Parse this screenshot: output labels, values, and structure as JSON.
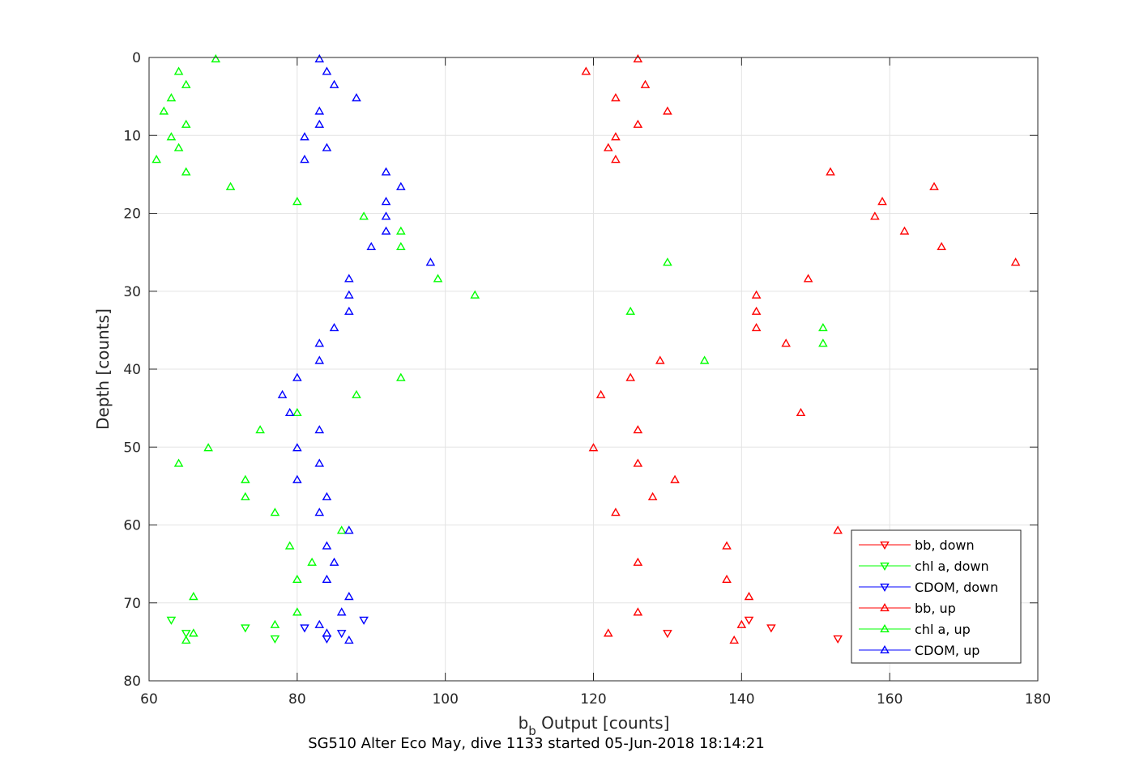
{
  "chart_data": {
    "type": "scatter",
    "xlabel": "b",
    "xlabel_subscript": "b",
    "xlabel_rest": " Output [counts]",
    "ylabel": "Depth [counts]",
    "caption": "SG510 Alter Eco May, dive 1133 started 05-Jun-2018 18:14:21",
    "xlim": [
      60,
      180
    ],
    "ylim": [
      0,
      80
    ],
    "y_reversed": true,
    "xticks": [
      "60",
      "80",
      "100",
      "120",
      "140",
      "160",
      "180"
    ],
    "yticks": [
      "0",
      "10",
      "20",
      "30",
      "40",
      "50",
      "60",
      "70",
      "80"
    ],
    "grid": true,
    "legend_position": "bottom-right",
    "series": [
      {
        "name": "bb, down",
        "color": "#ff0000",
        "marker": "triangle-down",
        "points": [
          [
            141,
            72.2
          ],
          [
            144,
            73.2
          ],
          [
            130,
            73.9
          ],
          [
            153,
            74.6
          ]
        ]
      },
      {
        "name": "chl a, down",
        "color": "#00ff00",
        "marker": "triangle-down",
        "points": [
          [
            63,
            72.2
          ],
          [
            73,
            73.2
          ],
          [
            65,
            73.9
          ],
          [
            77,
            74.6
          ]
        ]
      },
      {
        "name": "CDOM, down",
        "color": "#0000ff",
        "marker": "triangle-down",
        "points": [
          [
            89,
            72.2
          ],
          [
            81,
            73.2
          ],
          [
            86,
            73.9
          ],
          [
            84,
            74.6
          ]
        ]
      },
      {
        "name": "bb, up",
        "color": "#ff0000",
        "marker": "triangle-up",
        "points": [
          [
            126,
            0.2
          ],
          [
            119,
            1.8
          ],
          [
            127,
            3.5
          ],
          [
            123,
            5.2
          ],
          [
            130,
            6.9
          ],
          [
            126,
            8.6
          ],
          [
            123,
            10.2
          ],
          [
            122,
            11.6
          ],
          [
            123,
            13.1
          ],
          [
            152,
            14.7
          ],
          [
            166,
            16.6
          ],
          [
            159,
            18.5
          ],
          [
            158,
            20.4
          ],
          [
            162,
            22.3
          ],
          [
            167,
            24.3
          ],
          [
            177,
            26.3
          ],
          [
            149,
            28.4
          ],
          [
            142,
            30.5
          ],
          [
            142,
            32.6
          ],
          [
            142,
            34.7
          ],
          [
            146,
            36.7
          ],
          [
            129,
            38.9
          ],
          [
            125,
            41.1
          ],
          [
            121,
            43.3
          ],
          [
            148,
            45.6
          ],
          [
            126,
            47.8
          ],
          [
            120,
            50.1
          ],
          [
            126,
            52.1
          ],
          [
            131,
            54.2
          ],
          [
            128,
            56.4
          ],
          [
            123,
            58.4
          ],
          [
            153,
            60.7
          ],
          [
            138,
            62.7
          ],
          [
            126,
            64.8
          ],
          [
            138,
            67
          ],
          [
            141,
            69.2
          ],
          [
            126,
            71.2
          ],
          [
            140,
            72.8
          ],
          [
            122,
            73.9
          ],
          [
            139,
            74.8
          ]
        ]
      },
      {
        "name": "chl a, up",
        "color": "#00ff00",
        "marker": "triangle-up",
        "points": [
          [
            69,
            0.2
          ],
          [
            64,
            1.8
          ],
          [
            65,
            3.5
          ],
          [
            63,
            5.2
          ],
          [
            62,
            6.9
          ],
          [
            65,
            8.6
          ],
          [
            63,
            10.2
          ],
          [
            64,
            11.6
          ],
          [
            61,
            13.1
          ],
          [
            65,
            14.7
          ],
          [
            71,
            16.6
          ],
          [
            80,
            18.5
          ],
          [
            89,
            20.4
          ],
          [
            94,
            22.3
          ],
          [
            94,
            24.3
          ],
          [
            130,
            26.3
          ],
          [
            99,
            28.4
          ],
          [
            104,
            30.5
          ],
          [
            125,
            32.6
          ],
          [
            151,
            34.7
          ],
          [
            151,
            36.7
          ],
          [
            135,
            38.9
          ],
          [
            94,
            41.1
          ],
          [
            88,
            43.3
          ],
          [
            80,
            45.6
          ],
          [
            75,
            47.8
          ],
          [
            68,
            50.1
          ],
          [
            64,
            52.1
          ],
          [
            73,
            54.2
          ],
          [
            73,
            56.4
          ],
          [
            77,
            58.4
          ],
          [
            86,
            60.7
          ],
          [
            79,
            62.7
          ],
          [
            82,
            64.8
          ],
          [
            80,
            67
          ],
          [
            66,
            69.2
          ],
          [
            80,
            71.2
          ],
          [
            77,
            72.8
          ],
          [
            66,
            73.9
          ],
          [
            65,
            74.8
          ]
        ]
      },
      {
        "name": "CDOM, up",
        "color": "#0000ff",
        "marker": "triangle-up",
        "points": [
          [
            83,
            0.2
          ],
          [
            84,
            1.8
          ],
          [
            85,
            3.5
          ],
          [
            88,
            5.2
          ],
          [
            83,
            6.9
          ],
          [
            83,
            8.6
          ],
          [
            81,
            10.2
          ],
          [
            84,
            11.6
          ],
          [
            81,
            13.1
          ],
          [
            92,
            14.7
          ],
          [
            94,
            16.6
          ],
          [
            92,
            18.5
          ],
          [
            92,
            20.4
          ],
          [
            92,
            22.3
          ],
          [
            90,
            24.3
          ],
          [
            98,
            26.3
          ],
          [
            87,
            28.4
          ],
          [
            87,
            30.5
          ],
          [
            87,
            32.6
          ],
          [
            85,
            34.7
          ],
          [
            83,
            36.7
          ],
          [
            83,
            38.9
          ],
          [
            80,
            41.1
          ],
          [
            78,
            43.3
          ],
          [
            79,
            45.6
          ],
          [
            83,
            47.8
          ],
          [
            80,
            50.1
          ],
          [
            83,
            52.1
          ],
          [
            80,
            54.2
          ],
          [
            84,
            56.4
          ],
          [
            83,
            58.4
          ],
          [
            87,
            60.7
          ],
          [
            84,
            62.7
          ],
          [
            85,
            64.8
          ],
          [
            84,
            67
          ],
          [
            87,
            69.2
          ],
          [
            86,
            71.2
          ],
          [
            83,
            72.8
          ],
          [
            84,
            73.9
          ],
          [
            87,
            74.8
          ]
        ]
      }
    ]
  }
}
